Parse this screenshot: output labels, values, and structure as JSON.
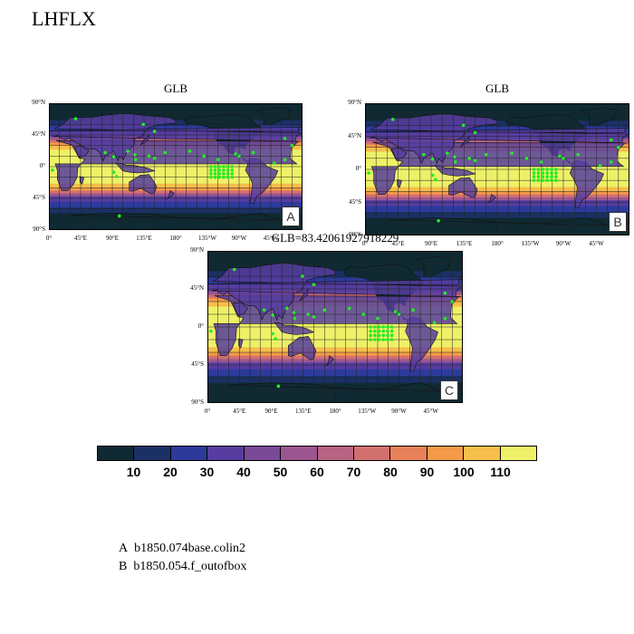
{
  "figure": {
    "title": "LHFLX"
  },
  "panels": [
    {
      "id": "A",
      "title": "GLB",
      "tag": "A"
    },
    {
      "id": "B",
      "title": "GLB",
      "tag": "B"
    },
    {
      "id": "C",
      "title": "GLB=83.42061927918229",
      "tag": "C"
    }
  ],
  "axes": {
    "lat_labels": [
      "90°N",
      "45°N",
      "0°",
      "45°S",
      "90°S"
    ],
    "lon_labels": [
      "0°",
      "45°E",
      "90°E",
      "135°E",
      "180°",
      "135°W",
      "90°W",
      "45°W"
    ]
  },
  "colorbar": {
    "colors": [
      "#0f2a33",
      "#1b3166",
      "#2d3a9b",
      "#563d9f",
      "#7a4a98",
      "#9b5690",
      "#b86383",
      "#d2706f",
      "#e7815a",
      "#f49a48",
      "#f6be4a",
      "#eef168"
    ],
    "labels": [
      "10",
      "20",
      "30",
      "40",
      "50",
      "60",
      "70",
      "80",
      "90",
      "100",
      "110"
    ]
  },
  "legend": [
    {
      "key": "A",
      "name": "b1850.074base.colin2"
    },
    {
      "key": "B",
      "name": "b1850.054.f_outofbox"
    }
  ],
  "colors": {
    "station_marker": "#22ee22",
    "land_outline": "#111111",
    "grid": "#222222"
  }
}
